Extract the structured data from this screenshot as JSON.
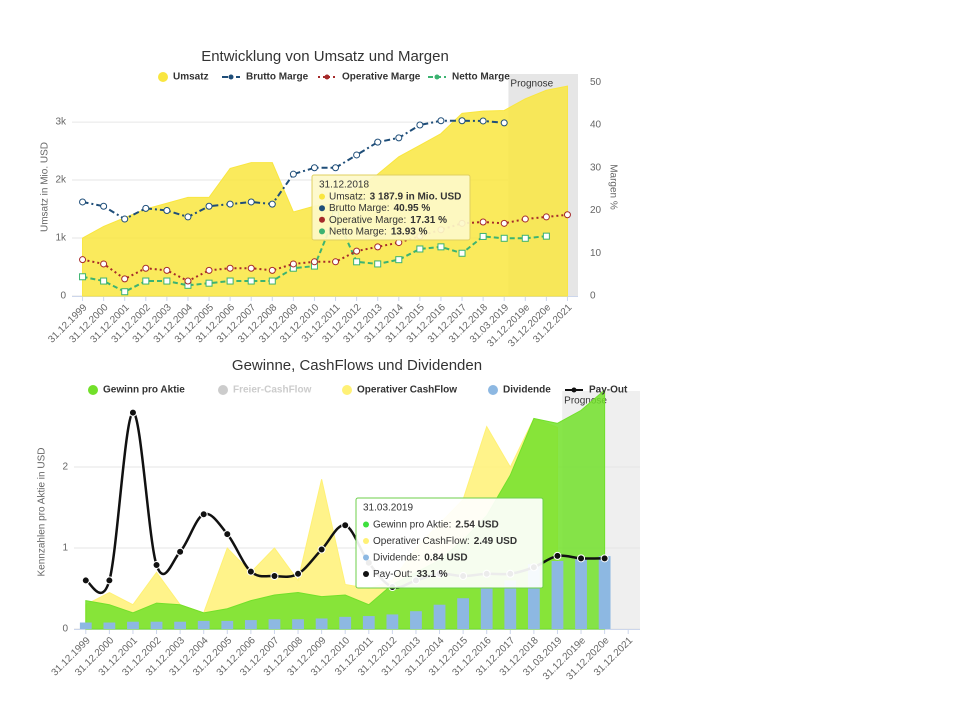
{
  "chart_data": [
    {
      "type": "combo",
      "title": "Entwicklung von Umsatz und Margen",
      "categories": [
        "31.12.1999",
        "31.12.2000",
        "31.12.2001",
        "31.12.2002",
        "31.12.2003",
        "31.12.2004",
        "31.12.2005",
        "31.12.2006",
        "31.12.2007",
        "31.12.2008",
        "31.12.2009",
        "31.12.2010",
        "31.12.2011",
        "31.12.2012",
        "31.12.2013",
        "31.12.2014",
        "31.12.2015",
        "31.12.2016",
        "31.12.2017",
        "31.12.2018",
        "31.03.2019",
        "31.12.2019e",
        "31.12.2020e",
        "31.12.2021"
      ],
      "y_label": "Umsatz in Mio. USD",
      "y2_label": "Margen %",
      "ylim": [
        0,
        3760
      ],
      "yticks": [
        0,
        {
          "value": 1000,
          "label": "1k"
        },
        {
          "value": 2000,
          "label": "2k"
        },
        {
          "value": 3000,
          "label": "3k"
        }
      ],
      "y2lim": [
        0,
        51
      ],
      "y2ticks": [
        0,
        10,
        20,
        30,
        40,
        50
      ],
      "grid": true,
      "forecast": {
        "label": "Prognose",
        "from": "31.03.2019",
        "color": "#e6e6e6"
      },
      "series": [
        {
          "name": "Umsatz",
          "type": "area",
          "color": "#f9e640",
          "values": [
            1000,
            1200,
            1350,
            1500,
            1600,
            1700,
            1700,
            2200,
            2300,
            2300,
            1450,
            1550,
            1600,
            1850,
            2100,
            2400,
            2600,
            2800,
            3150,
            3187.9,
            3200,
            3400,
            3550,
            3620
          ]
        },
        {
          "name": "Brutto Marge",
          "type": "line",
          "axis": "y2",
          "color": "#1f4e79",
          "dash": "6,3,2,3",
          "marker": "circle",
          "values": [
            22,
            21,
            18,
            20.5,
            20,
            18.5,
            21,
            21.5,
            22,
            21.5,
            28.5,
            30,
            30,
            33,
            36,
            37,
            40,
            41,
            41,
            40.95,
            40.5,
            null,
            null,
            null
          ]
        },
        {
          "name": "Operative Marge",
          "type": "line",
          "axis": "y2",
          "color": "#a52a2a",
          "dash": "2,3",
          "marker": "circle",
          "values": [
            8.5,
            7.5,
            4,
            6.5,
            6,
            3.5,
            6,
            6.5,
            6.5,
            6,
            7.5,
            8,
            8,
            10.5,
            11.5,
            12.5,
            14,
            15.5,
            17,
            17.31,
            17,
            18,
            18.5,
            19
          ]
        },
        {
          "name": "Netto Marge",
          "type": "line",
          "axis": "y2",
          "color": "#3cb371",
          "dash": "5,3",
          "marker": "square",
          "values": [
            4.5,
            3.5,
            1,
            3.5,
            3.5,
            2.5,
            3,
            3.5,
            3.5,
            3.5,
            6.5,
            7,
            19,
            8,
            7.5,
            8.5,
            11,
            11.5,
            10,
            13.93,
            13.5,
            13.5,
            14,
            null
          ]
        }
      ],
      "tooltip": {
        "title": "31.12.2018",
        "rows": [
          {
            "label": "Umsatz:",
            "value": "3 187.9 in Mio. USD",
            "color": "#f9e640"
          },
          {
            "label": "Brutto Marge:",
            "value": "40.95 %",
            "color": "#1f4e79"
          },
          {
            "label": "Operative Marge:",
            "value": "17.31 %",
            "color": "#a52a2a"
          },
          {
            "label": "Netto Marge:",
            "value": "13.93 %",
            "color": "#3cb371"
          }
        ]
      }
    },
    {
      "type": "combo",
      "title": "Gewinne, CashFlows und Dividenden",
      "categories": [
        "31.12.1999",
        "31.12.2000",
        "31.12.2001",
        "31.12.2002",
        "31.12.2003",
        "31.12.2004",
        "31.12.2005",
        "31.12.2006",
        "31.12.2007",
        "31.12.2008",
        "31.12.2009",
        "31.12.2010",
        "31.12.2011",
        "31.12.2012",
        "31.12.2013",
        "31.12.2014",
        "31.12.2015",
        "31.12.2016",
        "31.12.2017",
        "31.12.2018",
        "31.03.2019",
        "31.12.2019e",
        "31.12.2020e",
        "31.12.2021"
      ],
      "y_label": "Kennzahlen pro Aktie in USD",
      "ylim": [
        0,
        2.89
      ],
      "yticks": [
        0,
        1,
        2
      ],
      "y2lim": [
        0,
        106
      ],
      "grid": true,
      "forecast": {
        "label": "Prognose",
        "from": "31.03.2019",
        "color": "#efefef"
      },
      "series": [
        {
          "name": "Gewinn pro Aktie",
          "type": "area",
          "color": "#72e02a",
          "values": [
            0.35,
            0.3,
            0.2,
            0.32,
            0.3,
            0.2,
            0.25,
            0.35,
            0.42,
            0.45,
            0.4,
            0.42,
            0.3,
            0.55,
            0.7,
            0.85,
            1.1,
            1.4,
            1.9,
            2.6,
            2.54,
            2.7,
            2.95,
            null
          ]
        },
        {
          "name": "Freier-CashFlow",
          "type": "area",
          "color": "#cccccc",
          "hidden": true
        },
        {
          "name": "Operativer CashFlow",
          "type": "area",
          "color": "#fff176",
          "values": [
            0.3,
            0.45,
            0.3,
            0.7,
            0.3,
            0.2,
            1.0,
            0.7,
            1.0,
            0.6,
            1.85,
            0.55,
            0.5,
            0.6,
            1.0,
            1.3,
            1.6,
            2.5,
            2.0,
            2.6,
            2.49,
            null,
            null,
            null
          ]
        },
        {
          "name": "Dividende",
          "type": "column",
          "color": "#8db8e2",
          "values": [
            0.08,
            0.08,
            0.09,
            0.09,
            0.09,
            0.1,
            0.1,
            0.11,
            0.12,
            0.12,
            0.13,
            0.15,
            0.16,
            0.18,
            0.22,
            0.3,
            0.38,
            0.5,
            0.6,
            0.8,
            0.84,
            0.86,
            0.9,
            null
          ]
        },
        {
          "name": "Pay-Out",
          "type": "line",
          "axis": "y2",
          "color": "#111111",
          "smooth": true,
          "marker": "circle",
          "values": [
            22,
            22,
            98,
            29,
            35,
            52,
            43,
            26,
            24,
            25,
            36,
            47,
            30,
            19,
            22,
            25,
            24,
            25,
            25,
            28,
            33.1,
            32,
            32,
            null
          ]
        }
      ],
      "tooltip": {
        "title": "31.03.2019",
        "rows": [
          {
            "label": "Gewinn pro Aktie:",
            "value": "2.54 USD",
            "color": "#3ee03e"
          },
          {
            "label": "Operativer CashFlow:",
            "value": "2.49 USD",
            "color": "#fff176"
          },
          {
            "label": "Dividende:",
            "value": "0.84 USD",
            "color": "#8db8e2"
          },
          {
            "label": "Pay-Out:",
            "value": "33.1 %",
            "color": "#111111"
          }
        ]
      }
    }
  ]
}
